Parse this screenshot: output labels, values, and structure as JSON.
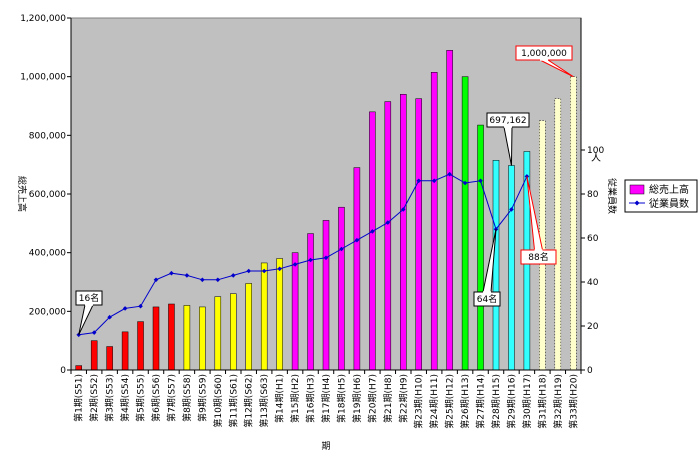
{
  "chart_data": {
    "type": "bar",
    "xlabel": "期",
    "ylabel": "総売上高",
    "y2label": "従業員数",
    "y2unit": "人",
    "ylim": [
      0,
      1200000
    ],
    "y2lim": [
      0,
      160
    ],
    "ytick_labels": [
      "0",
      "200,000",
      "400,000",
      "600,000",
      "800,000",
      "1,000,000",
      "1,200,000"
    ],
    "y2tick_labels": [
      "0",
      "20",
      "40",
      "60",
      "80",
      "100"
    ],
    "y2ticks": [
      0,
      20,
      40,
      60,
      80,
      100
    ],
    "grid": false,
    "legend_position": "right",
    "plot_background": "#c0c0c0",
    "categories": [
      "第1期(S51)",
      "第2期(S52)",
      "第3期(S53)",
      "第4期(S54)",
      "第5期(S55)",
      "第6期(S56)",
      "第7期(S57)",
      "第8期(S58)",
      "第9期(S59)",
      "第10期(S60)",
      "第11期(S61)",
      "第12期(S62)",
      "第13期(S63)",
      "第14期(H1)",
      "第15期(H2)",
      "第16期(H3)",
      "第17期(H4)",
      "第18期(H5)",
      "第19期(H6)",
      "第20期(H7)",
      "第21期(H8)",
      "第22期(H9)",
      "第23期(H10)",
      "第24期(H11)",
      "第25期(H12)",
      "第26期(H13)",
      "第27期(H14)",
      "第28期(H15)",
      "第29期(H16)",
      "第30期(H17)",
      "第31期(H18)",
      "第32期(H19)",
      "第33期(H20)"
    ],
    "bar_colors": [
      "#ff0000",
      "#ff0000",
      "#ff0000",
      "#ff0000",
      "#ff0000",
      "#ff0000",
      "#ff0000",
      "#ffff00",
      "#ffff00",
      "#ffff00",
      "#ffff00",
      "#ffff00",
      "#ffff00",
      "#ffff00",
      "#ff00ff",
      "#ff00ff",
      "#ff00ff",
      "#ff00ff",
      "#ff00ff",
      "#ff00ff",
      "#ff00ff",
      "#ff00ff",
      "#ff00ff",
      "#ff00ff",
      "#ff00ff",
      "#00ff00",
      "#00ff00",
      "#33ffff",
      "#33ffff",
      "#33ffff",
      "#ffffcc",
      "#ffffcc",
      "#ffffcc"
    ],
    "series": [
      {
        "name": "総売上高",
        "axis": "left",
        "type": "bar",
        "color": "#ff00ff",
        "values": [
          15000,
          100000,
          80000,
          130000,
          165000,
          215000,
          225000,
          220000,
          215000,
          250000,
          260000,
          295000,
          365000,
          380000,
          400000,
          465000,
          510000,
          555000,
          690000,
          880000,
          915000,
          940000,
          925000,
          1015000,
          1090000,
          1000000,
          835000,
          715000,
          697162,
          745000,
          850000,
          925000,
          1000000
        ]
      },
      {
        "name": "従業員数",
        "axis": "right",
        "type": "line",
        "color": "#0000cc",
        "values": [
          16,
          17,
          24,
          28,
          29,
          41,
          44,
          43,
          41,
          41,
          43,
          45,
          45,
          46,
          48,
          50,
          51,
          55,
          59,
          63,
          67,
          73,
          86,
          86,
          89,
          85,
          86,
          64,
          73,
          88,
          null,
          null,
          null
        ]
      }
    ],
    "annotations": [
      {
        "text": "16名",
        "series": 1,
        "index": 0
      },
      {
        "text": "64名",
        "series": 1,
        "index": 27
      },
      {
        "text": "88名",
        "series": 1,
        "index": 29
      },
      {
        "text": "697,162",
        "series": 0,
        "index": 28
      },
      {
        "text": "1,000,000",
        "series": 0,
        "index": 32
      }
    ]
  }
}
